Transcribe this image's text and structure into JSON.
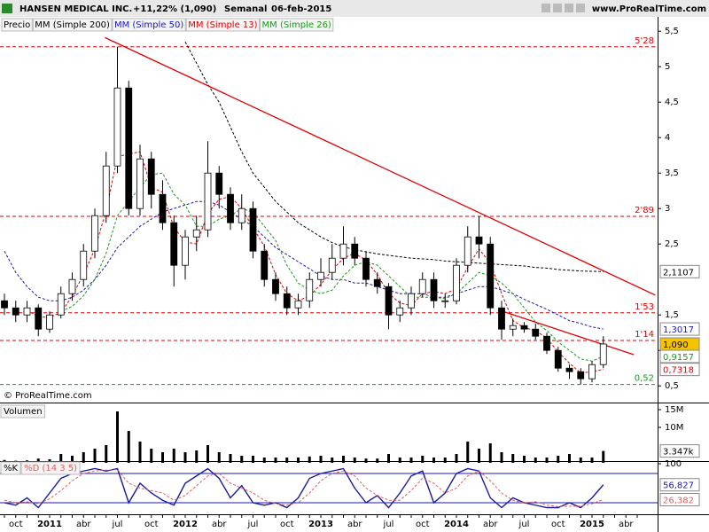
{
  "header": {
    "title": "HANSEN MEDICAL INC.",
    "change": "+11,22% (1,090)",
    "period": "Semanal",
    "date": "06-feb-2015",
    "site": "www.ProRealTime.com",
    "credit": "© ProRealTime.com"
  },
  "chart_data": [
    {
      "type": "candlestick",
      "name": "Precio",
      "up_color": "#ffffff",
      "down_color": "#000000",
      "last_label": "1,090",
      "last_color": "#f5c400",
      "categories": [
        null,
        "oct",
        null,
        null,
        "2011",
        null,
        null,
        "abr",
        null,
        null,
        "jul",
        null,
        null,
        "oct",
        null,
        null,
        "2012",
        null,
        null,
        "abr",
        null,
        null,
        "jul",
        null,
        null,
        "oct",
        null,
        null,
        "2013",
        null,
        null,
        "abr",
        null,
        null,
        "jul",
        null,
        null,
        "oct",
        null,
        null,
        "2014",
        null,
        null,
        "abr",
        null,
        null,
        "jul",
        null,
        null,
        "oct",
        null,
        null,
        "2015",
        null,
        null,
        "abr",
        null
      ],
      "open": [
        1.7,
        1.6,
        1.5,
        1.6,
        1.3,
        1.5,
        1.8,
        2.0,
        2.4,
        2.9,
        3.6,
        4.7,
        3.0,
        3.7,
        3.2,
        2.8,
        2.2,
        2.6,
        2.7,
        3.5,
        3.2,
        2.8,
        3.0,
        2.4,
        2.0,
        1.8,
        1.6,
        1.7,
        2.0,
        2.1,
        2.3,
        2.5,
        2.3,
        2.0,
        1.9,
        1.5,
        1.6,
        1.8,
        2.0,
        1.7,
        1.7,
        2.2,
        2.6,
        2.5,
        1.6,
        1.3,
        1.35,
        1.3,
        1.2,
        1.0,
        0.75,
        0.7,
        0.6,
        0.8,
        null,
        null,
        null
      ],
      "high": [
        1.8,
        1.7,
        1.7,
        1.65,
        1.55,
        1.9,
        2.1,
        2.5,
        3.0,
        3.8,
        5.28,
        4.8,
        3.9,
        3.8,
        3.4,
        2.9,
        2.7,
        2.9,
        3.95,
        3.6,
        3.3,
        3.2,
        3.1,
        2.5,
        2.1,
        1.9,
        1.8,
        2.1,
        2.3,
        2.5,
        2.75,
        2.6,
        2.4,
        2.1,
        1.95,
        1.7,
        1.9,
        2.1,
        2.1,
        1.8,
        2.3,
        2.75,
        2.89,
        2.6,
        1.7,
        1.45,
        1.4,
        1.38,
        1.25,
        1.05,
        0.8,
        0.75,
        0.85,
        1.2,
        null,
        null,
        null
      ],
      "low": [
        1.5,
        1.4,
        1.4,
        1.2,
        1.25,
        1.45,
        1.7,
        1.9,
        2.3,
        2.8,
        3.5,
        2.9,
        2.9,
        3.0,
        2.7,
        1.9,
        2.0,
        2.4,
        2.6,
        3.0,
        2.7,
        2.7,
        2.3,
        1.9,
        1.7,
        1.5,
        1.5,
        1.6,
        1.9,
        2.0,
        2.2,
        2.2,
        1.9,
        1.8,
        1.3,
        1.4,
        1.5,
        1.75,
        1.6,
        1.6,
        1.65,
        2.1,
        2.3,
        1.5,
        1.15,
        1.2,
        1.25,
        1.15,
        0.95,
        0.7,
        0.6,
        0.52,
        0.55,
        0.75,
        null,
        null,
        null
      ],
      "close": [
        1.6,
        1.5,
        1.6,
        1.3,
        1.5,
        1.8,
        2.0,
        2.4,
        2.9,
        3.6,
        4.7,
        3.0,
        3.7,
        3.2,
        2.8,
        2.2,
        2.6,
        2.7,
        3.5,
        3.2,
        2.8,
        3.0,
        2.4,
        2.0,
        1.8,
        1.6,
        1.7,
        2.0,
        2.1,
        2.3,
        2.5,
        2.3,
        2.0,
        1.9,
        1.5,
        1.6,
        1.8,
        2.0,
        1.7,
        1.7,
        2.2,
        2.6,
        2.5,
        1.6,
        1.3,
        1.35,
        1.3,
        1.2,
        1.0,
        0.75,
        0.7,
        0.6,
        0.8,
        1.09,
        null,
        null,
        null
      ],
      "series": [
        {
          "name": "MM (Simple 200)",
          "color": "#000000",
          "last_label": "2,1107",
          "values": [
            null,
            null,
            null,
            null,
            null,
            null,
            null,
            null,
            null,
            null,
            null,
            null,
            null,
            null,
            null,
            null,
            5.35,
            5.05,
            4.75,
            4.5,
            4.15,
            3.8,
            3.5,
            3.3,
            3.1,
            2.95,
            2.8,
            2.7,
            2.6,
            2.52,
            2.46,
            2.42,
            2.39,
            2.36,
            2.34,
            2.32,
            2.3,
            2.29,
            2.28,
            2.26,
            2.25,
            2.24,
            2.23,
            2.22,
            2.21,
            2.2,
            2.19,
            2.17,
            2.16,
            2.14,
            2.13,
            2.12,
            2.115,
            2.1107,
            null,
            null,
            null
          ]
        },
        {
          "name": "MM (Simple 50)",
          "color": "#1a1ab4",
          "last_label": "1,3017",
          "values": [
            2.4,
            2.1,
            1.9,
            1.75,
            1.7,
            1.7,
            1.75,
            1.85,
            2.0,
            2.2,
            2.45,
            2.6,
            2.75,
            2.85,
            2.95,
            3.0,
            3.05,
            3.1,
            3.1,
            3.05,
            2.95,
            2.85,
            2.75,
            2.6,
            2.45,
            2.35,
            2.25,
            2.15,
            2.05,
            2.0,
            2.0,
            1.95,
            1.95,
            1.9,
            1.85,
            1.8,
            1.8,
            1.8,
            1.75,
            1.75,
            1.8,
            1.85,
            1.9,
            1.9,
            1.85,
            1.8,
            1.72,
            1.65,
            1.58,
            1.5,
            1.42,
            1.38,
            1.33,
            1.3017,
            null,
            null,
            null
          ]
        },
        {
          "name": "MM (Simple 13)",
          "color": "#e00000",
          "last_label": "0,7318",
          "values": [
            null,
            null,
            1.57,
            1.47,
            1.47,
            1.53,
            1.77,
            2.07,
            2.43,
            2.97,
            3.73,
            3.77,
            3.8,
            3.3,
            3.23,
            2.73,
            2.53,
            2.5,
            2.93,
            3.13,
            3.17,
            3.0,
            2.73,
            2.47,
            2.07,
            1.8,
            1.7,
            1.77,
            1.93,
            2.13,
            2.3,
            2.37,
            2.27,
            2.07,
            1.8,
            1.67,
            1.63,
            1.8,
            1.83,
            1.8,
            1.87,
            2.17,
            2.43,
            2.23,
            1.8,
            1.42,
            1.32,
            1.28,
            1.17,
            0.98,
            0.82,
            0.68,
            0.7,
            0.7318,
            null,
            null,
            null
          ]
        },
        {
          "name": "MM (Simple 26)",
          "color": "#1a9a1a",
          "last_label": "0,9157",
          "values": [
            null,
            null,
            null,
            null,
            null,
            1.55,
            1.62,
            1.77,
            2.0,
            2.37,
            2.9,
            3.1,
            3.3,
            3.48,
            3.5,
            3.2,
            3.05,
            2.75,
            2.75,
            2.85,
            2.9,
            3.0,
            2.95,
            2.75,
            2.55,
            2.2,
            1.95,
            1.85,
            1.8,
            1.85,
            2.05,
            2.2,
            2.25,
            2.2,
            2.05,
            1.9,
            1.75,
            1.75,
            1.75,
            1.73,
            1.8,
            1.95,
            2.1,
            2.05,
            1.95,
            1.8,
            1.6,
            1.4,
            1.28,
            1.12,
            1.0,
            0.88,
            0.85,
            0.9157,
            null,
            null,
            null
          ]
        }
      ],
      "levels": [
        {
          "value": 5.28,
          "label": "5'28",
          "color": "#e00000"
        },
        {
          "value": 2.89,
          "label": "2'89",
          "color": "#e00000"
        },
        {
          "value": 1.53,
          "label": "1'53",
          "color": "#e00000"
        },
        {
          "value": 1.14,
          "label": "1'14",
          "color": "#e00000"
        },
        {
          "value": 0.52,
          "label": "0,52",
          "color": "#1a9a1a"
        }
      ],
      "trend_lines": [
        {
          "x": [
            8.9,
            57.6
          ],
          "y": [
            5.41,
            1.78
          ],
          "color": "#e00000"
        },
        {
          "x": [
            44.3,
            55.7
          ],
          "y": [
            1.54,
            0.94
          ],
          "color": "#e00000"
        }
      ],
      "ylim": [
        0.29,
        5.59
      ],
      "yticks": [
        {
          "value": 0.5,
          "label": "0,5"
        },
        1,
        {
          "value": 1.5,
          "label": "1,5"
        },
        {
          "value": 2.5,
          "label": "2,5"
        },
        3,
        {
          "value": 3.5,
          "label": "3,5"
        },
        4,
        {
          "value": 4.5,
          "label": "4,5"
        },
        5,
        {
          "value": 5.5,
          "label": "5,5"
        }
      ]
    },
    {
      "type": "bar",
      "name": "Volumen",
      "color": "#000000",
      "last_label": "3.347k",
      "values": [
        800000,
        600000,
        700000,
        1200000,
        1000000,
        2500000,
        2000000,
        3000000,
        4000000,
        5000000,
        14500000,
        9000000,
        6000000,
        4000000,
        3000000,
        4000000,
        3000000,
        3500000,
        5000000,
        3000000,
        2500000,
        2000000,
        2000000,
        1500000,
        1500000,
        1500000,
        1500000,
        1800000,
        2000000,
        1500000,
        2000000,
        1500000,
        1200000,
        1200000,
        2500000,
        1500000,
        1500000,
        2000000,
        1500000,
        1500000,
        2500000,
        6000000,
        4000000,
        5500000,
        3000000,
        2500000,
        2000000,
        1500000,
        1500000,
        2000000,
        2500000,
        1500000,
        1500000,
        3347000,
        null,
        null,
        null
      ],
      "ylim": [
        0,
        16500000
      ],
      "yticks": [
        {
          "value": 15000000,
          "label": "15M"
        },
        {
          "value": 10000000,
          "label": "10M"
        }
      ]
    },
    {
      "type": "line",
      "series": [
        {
          "name": "%K",
          "color": "#1a1aa0",
          "last_label": "56,827",
          "values": [
            20,
            15,
            30,
            10,
            40,
            70,
            80,
            85,
            90,
            85,
            90,
            20,
            60,
            40,
            25,
            15,
            60,
            75,
            90,
            70,
            30,
            55,
            20,
            15,
            20,
            10,
            30,
            70,
            80,
            85,
            90,
            50,
            20,
            35,
            10,
            40,
            75,
            85,
            20,
            40,
            80,
            90,
            85,
            30,
            10,
            30,
            20,
            15,
            10,
            10,
            20,
            10,
            30,
            56.827,
            null,
            null,
            null
          ]
        },
        {
          "name": "%D (14 3 5)",
          "color": "#e06060",
          "last_label": "26,382",
          "values": [
            25,
            20,
            22,
            18,
            28,
            45,
            65,
            80,
            85,
            87,
            88,
            60,
            50,
            45,
            40,
            25,
            35,
            55,
            75,
            80,
            60,
            50,
            40,
            25,
            18,
            15,
            20,
            40,
            65,
            80,
            85,
            75,
            50,
            35,
            25,
            25,
            45,
            70,
            60,
            40,
            50,
            75,
            85,
            65,
            40,
            25,
            20,
            22,
            15,
            12,
            13,
            13,
            18,
            26.382,
            null,
            null,
            null
          ]
        }
      ],
      "levels": [
        {
          "value": 80,
          "color": "#1a1ab4"
        },
        {
          "value": 20,
          "color": "#1a1ab4"
        }
      ],
      "ylim": [
        0,
        100
      ],
      "yticks": [
        100
      ]
    }
  ]
}
